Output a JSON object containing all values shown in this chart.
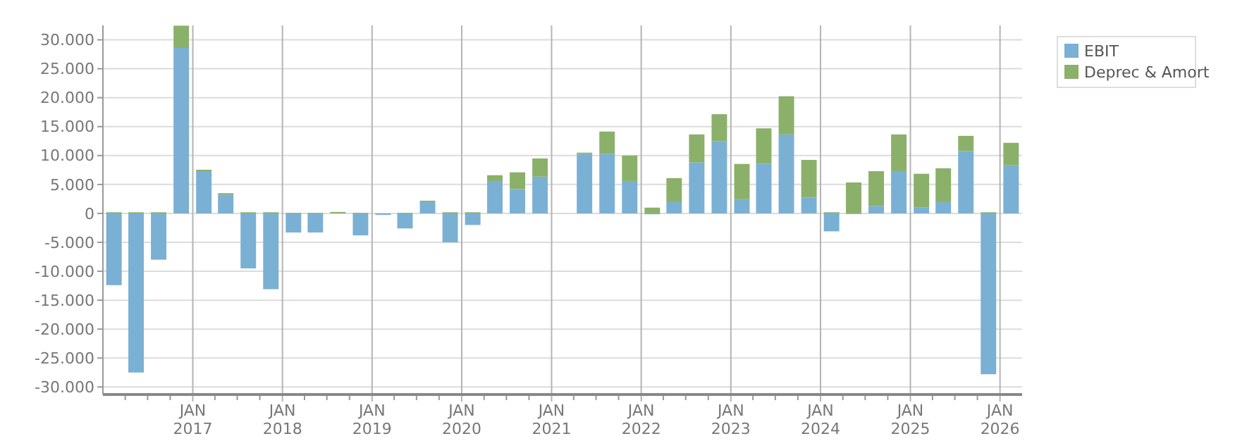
{
  "chart_data": {
    "type": "bar",
    "stacked": true,
    "x": [
      "2016-02-15",
      "2016-05-15",
      "2016-08-15",
      "2016-11-15",
      "2017-02-15",
      "2017-05-15",
      "2017-08-15",
      "2017-11-15",
      "2018-02-15",
      "2018-05-15",
      "2018-08-15",
      "2018-11-15",
      "2019-02-15",
      "2019-05-15",
      "2019-08-15",
      "2019-11-15",
      "2020-02-15",
      "2020-05-15",
      "2020-08-15",
      "2020-11-15",
      "2021-02-15",
      "2021-05-15",
      "2021-08-15",
      "2021-11-15",
      "2022-02-15",
      "2022-05-15",
      "2022-08-15",
      "2022-11-15",
      "2023-02-15",
      "2023-05-15",
      "2023-08-15",
      "2023-11-15",
      "2024-02-15",
      "2024-05-15",
      "2024-08-15",
      "2024-11-15",
      "2025-02-15",
      "2025-05-15",
      "2025-08-15",
      "2025-11-15",
      "2026-02-15"
    ],
    "series": [
      {
        "name": "EBIT",
        "color": "#7ab0d4",
        "values": [
          -12400,
          -27500,
          -8000,
          28600,
          7300,
          3250,
          -9500,
          -13100,
          -3300,
          -3300,
          0,
          -3800,
          -250,
          -2600,
          1950,
          -5000,
          -2000,
          5600,
          4200,
          6350,
          null,
          10250,
          10250,
          5600,
          -150,
          1950,
          8800,
          12500,
          2450,
          8600,
          13650,
          2750,
          -3100,
          -100,
          1300,
          7300,
          1000,
          1950,
          10750,
          -27800,
          8300
        ]
      },
      {
        "name": "Deprec & Amort",
        "color": "#8bb06a",
        "values": [
          200,
          200,
          200,
          3850,
          250,
          250,
          200,
          200,
          100,
          100,
          250,
          100,
          0,
          100,
          250,
          200,
          200,
          1000,
          2900,
          3150,
          null,
          250,
          3900,
          4400,
          1000,
          4150,
          4850,
          4650,
          6100,
          6100,
          6600,
          6500,
          200,
          5350,
          6000,
          6350,
          5850,
          5850,
          2650,
          200,
          3900
        ]
      }
    ],
    "xlim": [
      "2016-01-01",
      "2026-04-01"
    ],
    "xticks": [
      {
        "value": "2016-04-01",
        "label": null
      },
      {
        "value": "2016-07-01",
        "label": null
      },
      {
        "value": "2016-10-01",
        "label": null
      },
      {
        "value": "2017-01-01",
        "label": "JAN 2017"
      },
      {
        "value": "2017-04-01",
        "label": null
      },
      {
        "value": "2017-07-01",
        "label": null
      },
      {
        "value": "2017-10-01",
        "label": null
      },
      {
        "value": "2018-01-01",
        "label": "JAN 2018"
      },
      {
        "value": "2018-04-01",
        "label": null
      },
      {
        "value": "2018-07-01",
        "label": null
      },
      {
        "value": "2018-10-01",
        "label": null
      },
      {
        "value": "2019-01-01",
        "label": "JAN 2019"
      },
      {
        "value": "2019-04-01",
        "label": null
      },
      {
        "value": "2019-07-01",
        "label": null
      },
      {
        "value": "2019-10-01",
        "label": null
      },
      {
        "value": "2020-01-01",
        "label": "JAN 2020"
      },
      {
        "value": "2020-04-01",
        "label": null
      },
      {
        "value": "2020-07-01",
        "label": null
      },
      {
        "value": "2020-10-01",
        "label": null
      },
      {
        "value": "2021-01-01",
        "label": "JAN 2021"
      },
      {
        "value": "2021-04-01",
        "label": null
      },
      {
        "value": "2021-07-01",
        "label": null
      },
      {
        "value": "2021-10-01",
        "label": null
      },
      {
        "value": "2022-01-01",
        "label": "JAN 2022"
      },
      {
        "value": "2022-04-01",
        "label": null
      },
      {
        "value": "2022-07-01",
        "label": null
      },
      {
        "value": "2022-10-01",
        "label": null
      },
      {
        "value": "2023-01-01",
        "label": "JAN 2023"
      },
      {
        "value": "2023-04-01",
        "label": null
      },
      {
        "value": "2023-07-01",
        "label": null
      },
      {
        "value": "2023-10-01",
        "label": null
      },
      {
        "value": "2024-01-01",
        "label": "JAN 2024"
      },
      {
        "value": "2024-04-01",
        "label": null
      },
      {
        "value": "2024-07-01",
        "label": null
      },
      {
        "value": "2024-10-01",
        "label": null
      },
      {
        "value": "2025-01-01",
        "label": "JAN 2025"
      },
      {
        "value": "2025-04-01",
        "label": null
      },
      {
        "value": "2025-07-01",
        "label": null
      },
      {
        "value": "2025-10-01",
        "label": null
      },
      {
        "value": "2026-01-01",
        "label": "JAN 2026"
      }
    ],
    "ylim": [
      -31300,
      32500
    ],
    "yticks": [
      {
        "value": -30000,
        "label": "-30.000"
      },
      {
        "value": -25000,
        "label": "-25.000"
      },
      {
        "value": -20000,
        "label": "-20.000"
      },
      {
        "value": -15000,
        "label": "-15.000"
      },
      {
        "value": -10000,
        "label": "-10.000"
      },
      {
        "value": -5000,
        "label": "-5.000"
      },
      {
        "value": 0,
        "label": "0"
      },
      {
        "value": 5000,
        "label": "5.000"
      },
      {
        "value": 10000,
        "label": "10.000"
      },
      {
        "value": 15000,
        "label": "15.000"
      },
      {
        "value": 20000,
        "label": "20.000"
      },
      {
        "value": 25000,
        "label": "25.000"
      },
      {
        "value": 30000,
        "label": "30.000"
      }
    ],
    "grid": true,
    "legend": "top right"
  }
}
